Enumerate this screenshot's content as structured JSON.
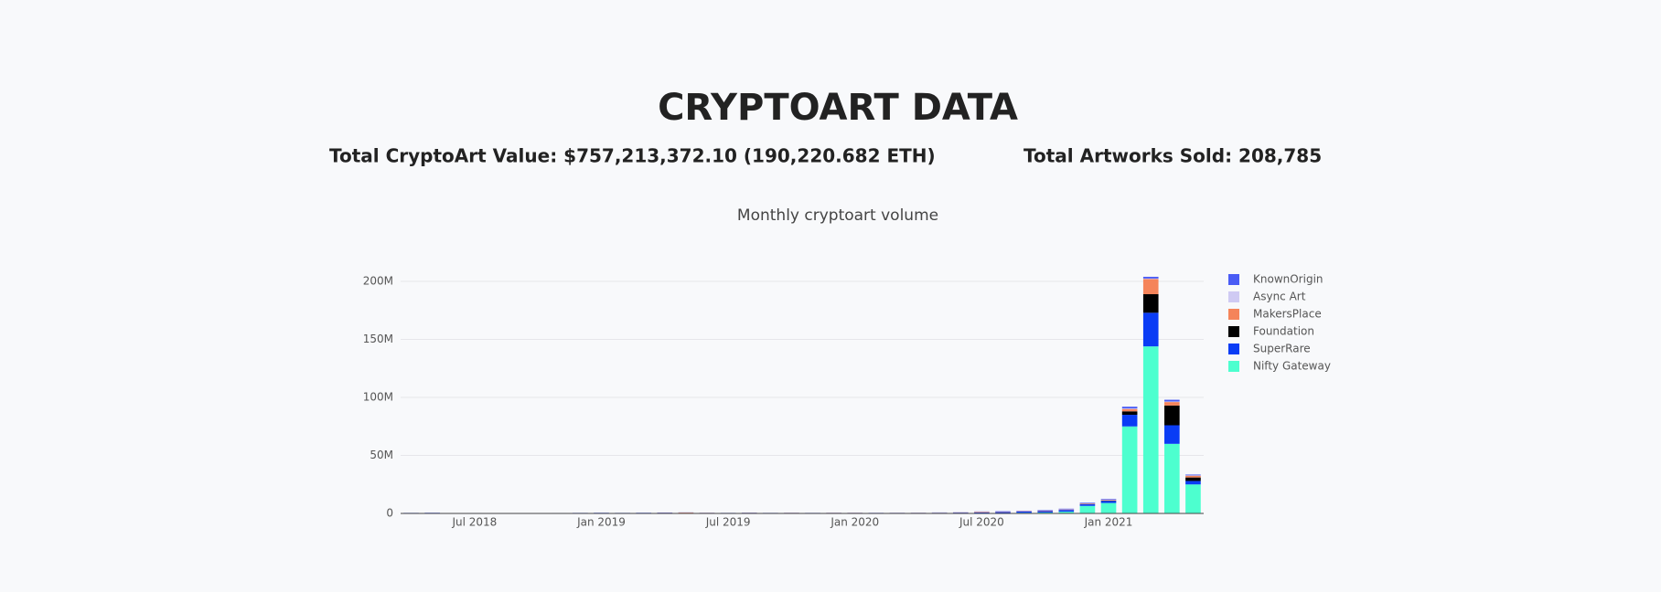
{
  "header": {
    "title": "CRYPTOART DATA",
    "stats": [
      "Total CryptoArt Value: $757,213,372.10 (190,220.682 ETH)",
      "Total Artworks Sold: 208,785"
    ]
  },
  "chart_data": {
    "type": "stacked_bar",
    "title": "Monthly cryptoart volume",
    "x": [
      "2018-04",
      "2018-05",
      "2018-06",
      "2018-07",
      "2018-08",
      "2018-09",
      "2018-10",
      "2018-11",
      "2018-12",
      "2019-01",
      "2019-02",
      "2019-03",
      "2019-04",
      "2019-05",
      "2019-06",
      "2019-07",
      "2019-08",
      "2019-09",
      "2019-10",
      "2019-11",
      "2019-12",
      "2020-01",
      "2020-02",
      "2020-03",
      "2020-04",
      "2020-05",
      "2020-06",
      "2020-07",
      "2020-08",
      "2020-09",
      "2020-10",
      "2020-11",
      "2020-12",
      "2021-01",
      "2021-02",
      "2021-03",
      "2021-04",
      "2021-05"
    ],
    "xlim": [
      "2018-04",
      "2021-05"
    ],
    "xticks": [
      {
        "value": "2018-07",
        "label": "Jul 2018"
      },
      {
        "value": "2019-01",
        "label": "Jan 2019"
      },
      {
        "value": "2019-07",
        "label": "Jul 2019"
      },
      {
        "value": "2020-01",
        "label": "Jan 2020"
      },
      {
        "value": "2020-07",
        "label": "Jul 2020"
      },
      {
        "value": "2021-01",
        "label": "Jan 2021"
      }
    ],
    "ylim": [
      0,
      215000000
    ],
    "yticks": [
      0,
      {
        "value": 50000000,
        "label": "50M"
      },
      {
        "value": 100000000,
        "label": "100M"
      },
      {
        "value": 150000000,
        "label": "150M"
      },
      {
        "value": 200000000,
        "label": "200M"
      }
    ],
    "grid": true,
    "legend": "right",
    "series": [
      {
        "name": "KnownOrigin",
        "color": "#4a5cf5",
        "values": [
          100000,
          100000,
          0,
          100000,
          0,
          0,
          100000,
          100000,
          100000,
          100000,
          100000,
          100000,
          100000,
          100000,
          100000,
          100000,
          100000,
          100000,
          100000,
          100000,
          100000,
          100000,
          100000,
          100000,
          100000,
          100000,
          100000,
          200000,
          300000,
          300000,
          400000,
          500000,
          500000,
          600000,
          1500000,
          1500000,
          1500000,
          700000
        ]
      },
      {
        "name": "Async Art",
        "color": "#cfcaf3",
        "values": [
          0,
          0,
          0,
          0,
          0,
          0,
          0,
          0,
          0,
          0,
          0,
          0,
          0,
          0,
          0,
          0,
          0,
          0,
          0,
          0,
          0,
          0,
          100000,
          100000,
          100000,
          100000,
          100000,
          100000,
          100000,
          200000,
          200000,
          200000,
          300000,
          300000,
          500000,
          500000,
          500000,
          300000
        ]
      },
      {
        "name": "MakersPlace",
        "color": "#f5845a",
        "values": [
          0,
          0,
          0,
          0,
          0,
          0,
          0,
          0,
          0,
          0,
          0,
          0,
          100000,
          300000,
          100000,
          100000,
          100000,
          100000,
          100000,
          100000,
          100000,
          100000,
          100000,
          100000,
          100000,
          100000,
          200000,
          500000,
          300000,
          300000,
          400000,
          400000,
          500000,
          500000,
          2000000,
          13000000,
          3000000,
          1500000
        ]
      },
      {
        "name": "Foundation",
        "color": "#000000",
        "values": [
          0,
          0,
          0,
          0,
          0,
          0,
          0,
          0,
          0,
          0,
          0,
          0,
          0,
          0,
          0,
          0,
          0,
          0,
          0,
          0,
          0,
          0,
          0,
          0,
          0,
          0,
          0,
          0,
          0,
          0,
          0,
          0,
          100000,
          300000,
          3000000,
          16000000,
          17000000,
          3000000
        ]
      },
      {
        "name": "SuperRare",
        "color": "#0a3cf5",
        "values": [
          400000,
          500000,
          100000,
          300000,
          100000,
          100000,
          200000,
          300000,
          400000,
          500000,
          400000,
          500000,
          600000,
          500000,
          400000,
          300000,
          500000,
          300000,
          400000,
          300000,
          400000,
          400000,
          300000,
          300000,
          300000,
          400000,
          500000,
          600000,
          800000,
          1000000,
          1200000,
          1500000,
          1500000,
          1800000,
          10000000,
          29000000,
          16000000,
          3000000
        ]
      },
      {
        "name": "Nifty Gateway",
        "color": "#4dffcf",
        "values": [
          0,
          0,
          0,
          0,
          0,
          0,
          0,
          0,
          0,
          0,
          0,
          0,
          0,
          0,
          0,
          0,
          0,
          0,
          0,
          0,
          0,
          0,
          0,
          50000,
          100000,
          150000,
          200000,
          300000,
          400000,
          600000,
          800000,
          1500000,
          6500000,
          9000000,
          75000000,
          144000000,
          60000000,
          25000000
        ]
      }
    ]
  }
}
